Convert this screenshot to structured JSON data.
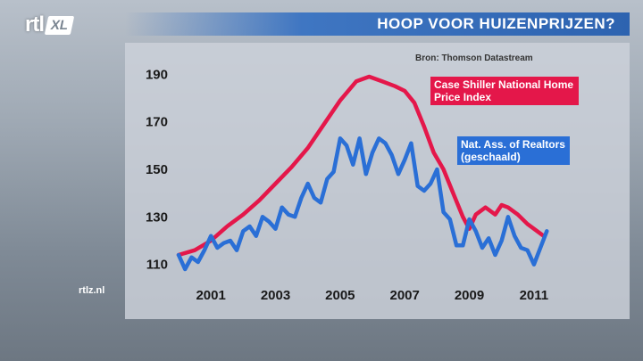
{
  "header": {
    "logo_rtl": "rtl",
    "logo_xl": "XL",
    "title": "HOOP VOOR HUIZENPRIJZEN?",
    "source": "Bron: Thomson Datastream",
    "site": "rtlz.nl"
  },
  "colors": {
    "case_shiller": "#e4174a",
    "nar": "#2a6fd6",
    "title_bar": "#2d63b0"
  },
  "chart_data": {
    "type": "line",
    "title": "HOOP VOOR HUIZENPRIJZEN?",
    "xlabel": "",
    "ylabel": "",
    "x_ticks": [
      "2001",
      "2003",
      "2005",
      "2007",
      "2009",
      "2011"
    ],
    "y_ticks": [
      110,
      130,
      150,
      170,
      190
    ],
    "xlim": [
      2000.0,
      2011.75
    ],
    "ylim": [
      105,
      195
    ],
    "grid": false,
    "series": [
      {
        "name": "Case Shiller National Home Price Index",
        "color": "#e4174a",
        "x": [
          2000.0,
          2000.5,
          2001.0,
          2001.5,
          2002.0,
          2002.5,
          2003.0,
          2003.5,
          2004.0,
          2004.5,
          2005.0,
          2005.5,
          2005.9,
          2006.3,
          2006.7,
          2007.0,
          2007.3,
          2007.6,
          2007.9,
          2008.2,
          2008.5,
          2008.8,
          2009.0,
          2009.2,
          2009.5,
          2009.8,
          2010.0,
          2010.2,
          2010.5,
          2010.8,
          2011.0,
          2011.3
        ],
        "values": [
          114,
          116,
          120,
          126,
          131,
          137,
          144,
          151,
          159,
          169,
          179,
          187,
          189,
          187,
          185,
          183,
          178,
          168,
          157,
          150,
          140,
          130,
          125,
          131,
          134,
          131,
          135,
          134,
          131,
          127,
          125,
          122
        ]
      },
      {
        "name": "Nat. Ass. of Realtors (geschaald)",
        "color": "#2a6fd6",
        "x": [
          2000.0,
          2000.2,
          2000.4,
          2000.6,
          2000.8,
          2001.0,
          2001.2,
          2001.4,
          2001.6,
          2001.8,
          2002.0,
          2002.2,
          2002.4,
          2002.6,
          2002.8,
          2003.0,
          2003.2,
          2003.4,
          2003.6,
          2003.8,
          2004.0,
          2004.2,
          2004.4,
          2004.6,
          2004.8,
          2005.0,
          2005.2,
          2005.4,
          2005.6,
          2005.8,
          2006.0,
          2006.2,
          2006.4,
          2006.6,
          2006.8,
          2007.0,
          2007.2,
          2007.4,
          2007.6,
          2007.8,
          2008.0,
          2008.2,
          2008.4,
          2008.6,
          2008.8,
          2009.0,
          2009.2,
          2009.4,
          2009.6,
          2009.8,
          2010.0,
          2010.2,
          2010.4,
          2010.6,
          2010.8,
          2011.0,
          2011.2,
          2011.4
        ],
        "values": [
          114,
          108,
          113,
          111,
          116,
          122,
          117,
          119,
          120,
          116,
          124,
          126,
          122,
          130,
          128,
          125,
          134,
          131,
          130,
          138,
          144,
          138,
          136,
          146,
          149,
          163,
          160,
          152,
          163,
          148,
          157,
          163,
          161,
          156,
          148,
          154,
          161,
          143,
          141,
          144,
          150,
          132,
          129,
          118,
          118,
          129,
          124,
          117,
          121,
          114,
          120,
          130,
          122,
          117,
          116,
          110,
          117,
          124
        ]
      }
    ]
  }
}
